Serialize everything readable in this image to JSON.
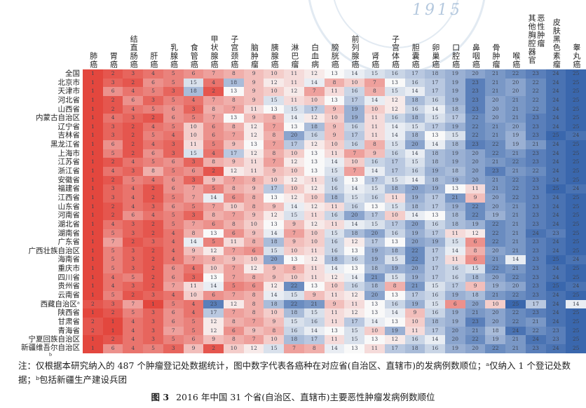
{
  "watermark": {
    "year": "1915"
  },
  "chart_data": {
    "type": "heatmap",
    "caption_label": "图 3",
    "caption_text": "2016 年中国 31 个省(自治区、直辖市)主要恶性肿瘤发病例数顺位",
    "note": "注：仅根据本研究纳入的 487 个肿瘤登记处数据统计，图中数字代表各癌种在对应省(自治区、直辖市)的发病例数顺位；ᵃ仅纳入 1 个登记处数据；ᵇ包括新疆生产建设兵团",
    "value_meaning": "发病例数顺位(1=最高)",
    "colormap": {
      "low": "#e3473e",
      "mid": "#f9f9f9",
      "high": "#3a67ad",
      "low_rank": 1,
      "high_rank": 25
    },
    "columns": [
      "肺癌",
      "胃癌",
      "结直肠癌",
      "肝癌",
      "乳腺癌",
      "食管癌",
      "甲状腺癌",
      "子宫颈癌",
      "脑肿瘤",
      "胰腺癌",
      "淋巴瘤",
      "白血病",
      "膀胱癌",
      "前列腺癌",
      "肾癌",
      "子宫体癌",
      "胆囊癌",
      "卵巢癌",
      "口腔癌",
      "鼻咽癌",
      "骨肿瘤",
      "喉癌",
      "其他胸腔器官恶性肿瘤",
      "皮肤黑色素瘤",
      "睾丸癌"
    ],
    "rows": [
      {
        "label": "全国",
        "values": [
          1,
          2,
          3,
          4,
          5,
          6,
          7,
          8,
          9,
          10,
          11,
          12,
          13,
          14,
          15,
          16,
          17,
          18,
          19,
          20,
          21,
          22,
          23,
          24,
          25
        ]
      },
      {
        "label": "北京市",
        "values": [
          1,
          3,
          2,
          6,
          5,
          15,
          4,
          18,
          9,
          12,
          11,
          14,
          8,
          10,
          7,
          13,
          16,
          17,
          19,
          23,
          21,
          20,
          22,
          24,
          25
        ]
      },
      {
        "label": "天津市",
        "values": [
          1,
          6,
          4,
          5,
          3,
          18,
          2,
          13,
          9,
          10,
          12,
          7,
          11,
          16,
          8,
          15,
          14,
          17,
          19,
          23,
          21,
          20,
          22,
          24,
          25
        ]
      },
      {
        "label": "河北省",
        "values": [
          1,
          2,
          6,
          3,
          5,
          4,
          7,
          8,
          9,
          15,
          11,
          10,
          13,
          17,
          14,
          12,
          18,
          16,
          19,
          23,
          20,
          21,
          22,
          24,
          25
        ]
      },
      {
        "label": "山西省",
        "values": [
          1,
          2,
          4,
          5,
          6,
          3,
          8,
          7,
          11,
          13,
          15,
          17,
          9,
          19,
          10,
          12,
          16,
          14,
          18,
          23,
          20,
          21,
          22,
          24,
          25
        ]
      },
      {
        "label": "内蒙古自治区",
        "values": [
          1,
          4,
          3,
          2,
          6,
          5,
          7,
          13,
          9,
          8,
          14,
          12,
          10,
          19,
          11,
          16,
          18,
          15,
          17,
          22,
          20,
          21,
          23,
          24,
          25
        ]
      },
      {
        "label": "辽宁省",
        "values": [
          1,
          3,
          2,
          4,
          5,
          10,
          6,
          8,
          12,
          7,
          13,
          18,
          9,
          16,
          11,
          14,
          15,
          17,
          19,
          22,
          21,
          20,
          23,
          24,
          25
        ]
      },
      {
        "label": "吉林省",
        "values": [
          1,
          3,
          2,
          5,
          4,
          10,
          6,
          7,
          12,
          8,
          20,
          16,
          9,
          17,
          11,
          14,
          18,
          13,
          15,
          22,
          21,
          19,
          23,
          25,
          24
        ]
      },
      {
        "label": "黑龙江省",
        "values": [
          1,
          6,
          2,
          4,
          3,
          11,
          5,
          9,
          13,
          7,
          17,
          12,
          10,
          16,
          8,
          15,
          20,
          14,
          18,
          23,
          22,
          19,
          21,
          24,
          25
        ]
      },
      {
        "label": "上海市",
        "values": [
          1,
          5,
          2,
          6,
          3,
          15,
          4,
          17,
          12,
          8,
          10,
          13,
          11,
          7,
          9,
          16,
          14,
          18,
          19,
          20,
          22,
          21,
          23,
          24,
          25
        ]
      },
      {
        "label": "江苏省",
        "values": [
          1,
          2,
          4,
          5,
          6,
          3,
          8,
          9,
          11,
          7,
          12,
          13,
          14,
          10,
          16,
          17,
          15,
          18,
          19,
          20,
          21,
          22,
          23,
          24,
          25
        ]
      },
      {
        "label": "浙江省",
        "values": [
          1,
          4,
          3,
          8,
          5,
          6,
          2,
          12,
          11,
          9,
          10,
          13,
          15,
          7,
          14,
          17,
          16,
          19,
          18,
          20,
          23,
          21,
          22,
          24,
          25
        ]
      },
      {
        "label": "安徽省",
        "values": [
          1,
          2,
          5,
          4,
          6,
          3,
          9,
          7,
          8,
          10,
          12,
          11,
          16,
          13,
          17,
          15,
          14,
          18,
          19,
          20,
          21,
          22,
          23,
          24,
          25
        ]
      },
      {
        "label": "福建省",
        "values": [
          1,
          3,
          4,
          2,
          6,
          7,
          5,
          8,
          9,
          17,
          10,
          12,
          16,
          14,
          15,
          18,
          20,
          19,
          13,
          11,
          21,
          22,
          23,
          25,
          24
        ]
      },
      {
        "label": "江西省",
        "values": [
          1,
          3,
          4,
          2,
          5,
          7,
          14,
          6,
          8,
          13,
          12,
          10,
          18,
          15,
          16,
          11,
          19,
          17,
          21,
          9,
          20,
          22,
          23,
          24,
          25
        ]
      },
      {
        "label": "山东省",
        "values": [
          1,
          2,
          4,
          3,
          6,
          5,
          7,
          10,
          8,
          9,
          14,
          12,
          11,
          16,
          13,
          15,
          18,
          17,
          19,
          22,
          20,
          21,
          23,
          24,
          25
        ]
      },
      {
        "label": "河南省",
        "values": [
          1,
          2,
          6,
          4,
          5,
          3,
          8,
          7,
          9,
          12,
          15,
          11,
          16,
          20,
          17,
          10,
          14,
          13,
          18,
          22,
          19,
          21,
          23,
          24,
          25
        ]
      },
      {
        "label": "湖北省",
        "values": [
          1,
          4,
          3,
          2,
          5,
          7,
          6,
          8,
          10,
          13,
          9,
          12,
          11,
          14,
          15,
          17,
          20,
          16,
          18,
          19,
          22,
          21,
          23,
          24,
          25
        ]
      },
      {
        "label": "湖南省",
        "values": [
          1,
          5,
          3,
          2,
          4,
          8,
          13,
          6,
          9,
          14,
          7,
          10,
          15,
          18,
          20,
          16,
          19,
          17,
          11,
          12,
          22,
          21,
          24,
          23,
          25
        ]
      },
      {
        "label": "广东省",
        "values": [
          1,
          7,
          2,
          3,
          4,
          14,
          5,
          11,
          8,
          18,
          9,
          10,
          16,
          12,
          17,
          13,
          20,
          19,
          15,
          6,
          22,
          21,
          23,
          24,
          25
        ]
      },
      {
        "label": "广西壮族自治区",
        "values": [
          1,
          5,
          3,
          2,
          4,
          9,
          12,
          7,
          6,
          15,
          10,
          11,
          16,
          13,
          19,
          18,
          22,
          17,
          14,
          8,
          20,
          21,
          23,
          24,
          25
        ]
      },
      {
        "label": "海南省",
        "values": [
          1,
          5,
          3,
          2,
          4,
          7,
          8,
          9,
          10,
          20,
          13,
          12,
          18,
          16,
          19,
          15,
          22,
          17,
          11,
          6,
          21,
          14,
          23,
          25,
          24
        ]
      },
      {
        "label": "重庆市",
        "values": [
          1,
          5,
          3,
          2,
          6,
          4,
          10,
          7,
          12,
          9,
          8,
          11,
          14,
          13,
          18,
          19,
          20,
          17,
          16,
          15,
          22,
          21,
          23,
          24,
          25
        ]
      },
      {
        "label": "四川省",
        "values": [
          1,
          4,
          5,
          2,
          6,
          3,
          13,
          7,
          8,
          9,
          10,
          11,
          12,
          14,
          21,
          15,
          19,
          17,
          16,
          18,
          20,
          22,
          23,
          24,
          25
        ]
      },
      {
        "label": "贵州省",
        "values": [
          1,
          4,
          3,
          2,
          7,
          11,
          14,
          5,
          6,
          12,
          22,
          13,
          10,
          16,
          18,
          8,
          21,
          15,
          17,
          9,
          19,
          20,
          23,
          25,
          24
        ]
      },
      {
        "label": "云南省",
        "values": [
          1,
          5,
          2,
          3,
          4,
          10,
          6,
          7,
          8,
          14,
          15,
          9,
          11,
          12,
          20,
          13,
          17,
          16,
          19,
          18,
          21,
          22,
          23,
          24,
          25
        ]
      },
      {
        "label": "西藏自治区ᵃ",
        "values": [
          2,
          3,
          7,
          1,
          5,
          4,
          23,
          12,
          8,
          18,
          22,
          21,
          9,
          11,
          13,
          16,
          19,
          15,
          6,
          20,
          10,
          25,
          17,
          24,
          14
        ]
      },
      {
        "label": "陕西省",
        "values": [
          1,
          2,
          5,
          3,
          6,
          4,
          17,
          7,
          8,
          10,
          18,
          15,
          11,
          12,
          13,
          14,
          9,
          16,
          19,
          21,
          20,
          22,
          23,
          24,
          25
        ]
      },
      {
        "label": "甘肃省",
        "values": [
          2,
          1,
          4,
          3,
          6,
          5,
          12,
          8,
          7,
          9,
          15,
          16,
          11,
          17,
          14,
          13,
          10,
          18,
          19,
          23,
          20,
          22,
          21,
          24,
          25
        ]
      },
      {
        "label": "青海省",
        "values": [
          2,
          1,
          4,
          3,
          7,
          5,
          12,
          6,
          9,
          8,
          16,
          14,
          13,
          15,
          10,
          19,
          11,
          17,
          20,
          21,
          18,
          24,
          22,
          23,
          25
        ]
      },
      {
        "label": "宁夏回族自治区",
        "values": [
          1,
          2,
          4,
          3,
          5,
          6,
          9,
          8,
          7,
          10,
          18,
          17,
          11,
          15,
          13,
          12,
          16,
          14,
          20,
          22,
          19,
          21,
          24,
          23,
          25
        ]
      },
      {
        "label": "新疆维吾尔自治区ᵇ",
        "values": [
          1,
          6,
          4,
          5,
          3,
          9,
          2,
          10,
          12,
          15,
          7,
          8,
          14,
          13,
          11,
          17,
          18,
          16,
          19,
          20,
          22,
          21,
          23,
          24,
          25
        ]
      }
    ]
  }
}
